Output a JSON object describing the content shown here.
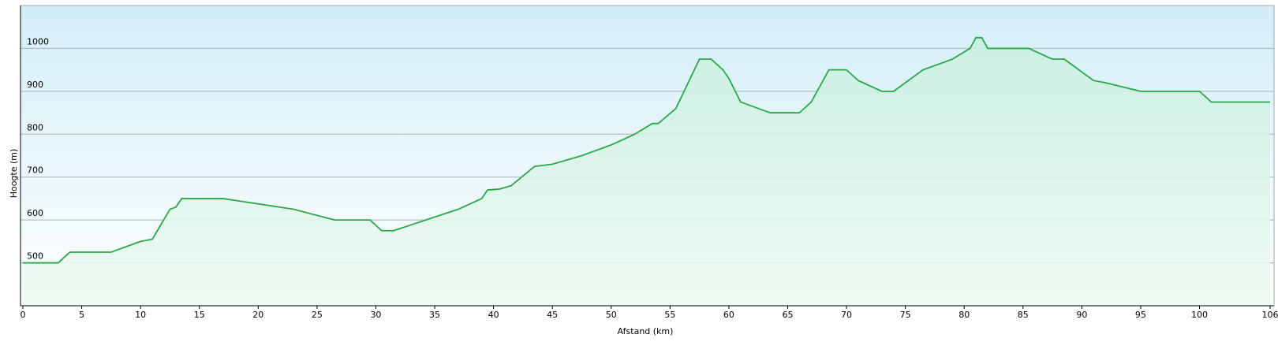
{
  "chart_data": {
    "type": "area",
    "xlabel": "Afstand  (km)",
    "ylabel": "Hoogte (m)",
    "x": [
      0,
      3,
      4,
      7.5,
      10,
      11,
      12.5,
      13,
      13.5,
      17,
      23,
      26.5,
      29.5,
      30.5,
      31.5,
      37,
      39,
      39.5,
      40.5,
      41.5,
      43.5,
      45,
      47.5,
      50,
      52,
      53.5,
      54,
      55.5,
      57.5,
      58.5,
      59.5,
      60,
      61,
      63.5,
      66,
      67,
      68.5,
      70,
      71,
      73,
      74,
      76.5,
      79,
      80.5,
      81,
      81.5,
      82,
      85.5,
      87.5,
      88.5,
      91,
      92,
      95,
      100,
      101,
      106
    ],
    "values": [
      500,
      500,
      525,
      525,
      550,
      555,
      625,
      630,
      650,
      650,
      625,
      600,
      600,
      575,
      575,
      625,
      650,
      670,
      672,
      680,
      725,
      730,
      750,
      775,
      800,
      825,
      825,
      860,
      975,
      975,
      950,
      930,
      875,
      850,
      850,
      875,
      950,
      950,
      925,
      900,
      900,
      950,
      975,
      1000,
      1025,
      1025,
      1000,
      1000,
      975,
      975,
      925,
      920,
      900,
      900,
      875,
      875
    ],
    "color": "#2aa847",
    "xlim": [
      0,
      106
    ],
    "ylim": [
      400,
      1100
    ],
    "xticks": [
      0,
      5,
      10,
      15,
      20,
      25,
      30,
      35,
      40,
      45,
      50,
      55,
      60,
      65,
      70,
      75,
      80,
      85,
      90,
      95,
      100,
      106
    ],
    "yticks": [
      500,
      600,
      700,
      800,
      900,
      1000
    ],
    "grid": true
  }
}
